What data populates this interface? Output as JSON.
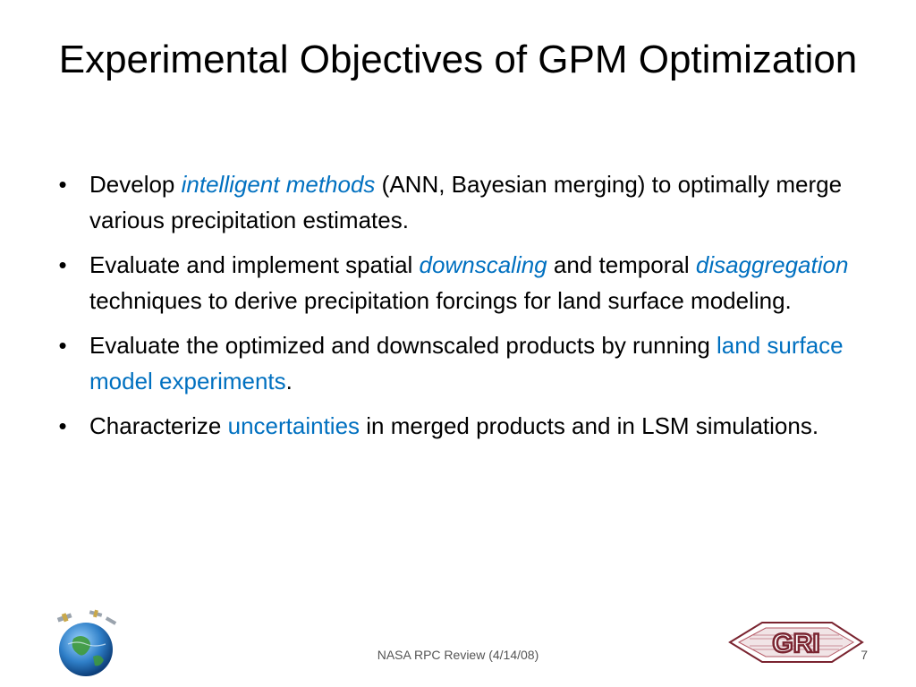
{
  "slide": {
    "title": "Experimental Objectives of GPM Optimization",
    "bullet_glyph": "•",
    "bullets": [
      {
        "parts": [
          {
            "text": "Develop ",
            "style": "plain"
          },
          {
            "text": "intelligent methods",
            "style": "highlight-italic"
          },
          {
            "text": " (ANN, Bayesian merging) to optimally merge various precipitation estimates.",
            "style": "plain"
          }
        ]
      },
      {
        "parts": [
          {
            "text": "Evaluate and implement spatial ",
            "style": "plain"
          },
          {
            "text": "downscaling",
            "style": "highlight-italic"
          },
          {
            "text": " and temporal ",
            "style": "plain"
          },
          {
            "text": "disaggregation",
            "style": "highlight-italic"
          },
          {
            "text": " techniques to derive precipitation forcings for land surface modeling.",
            "style": "plain"
          }
        ]
      },
      {
        "parts": [
          {
            "text": "Evaluate the optimized and downscaled products by running ",
            "style": "plain"
          },
          {
            "text": "land surface model experiments",
            "style": "highlight"
          },
          {
            "text": ".",
            "style": "plain"
          }
        ]
      },
      {
        "parts": [
          {
            "text": "Characterize ",
            "style": "plain"
          },
          {
            "text": "uncertainties",
            "style": "highlight"
          },
          {
            "text": " in merged products and in LSM simulations.",
            "style": "plain"
          }
        ]
      }
    ],
    "footer": "NASA RPC Review (4/14/08)",
    "page_number": "7",
    "right_logo_text": "GRI"
  },
  "colors": {
    "highlight": "#0070c0",
    "logo_maroon": "#7a2430"
  },
  "icons": {
    "left_logo": "globe-satellite-logo",
    "right_logo": "gri-logo"
  }
}
